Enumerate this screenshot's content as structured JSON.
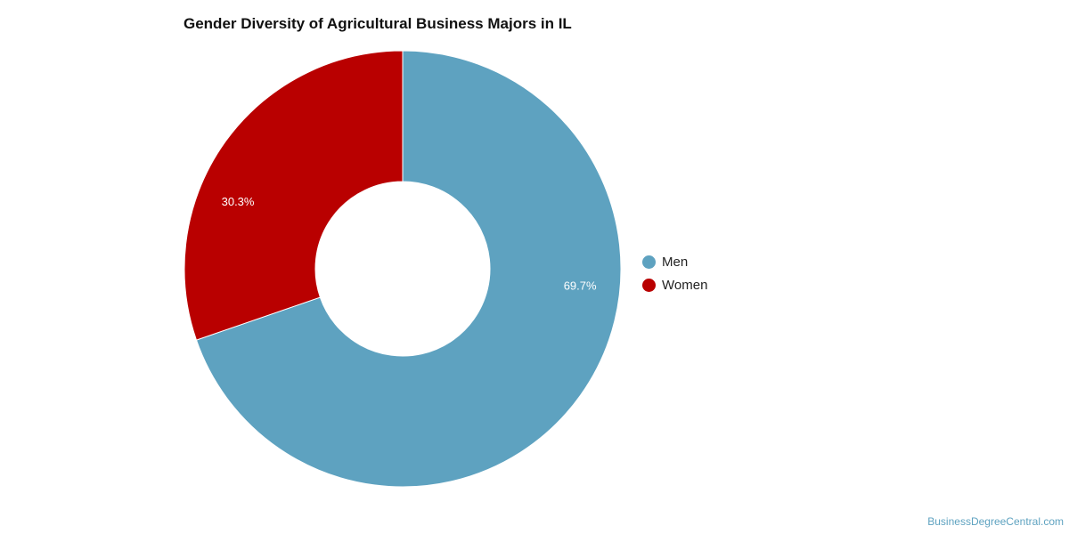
{
  "chart_data": {
    "type": "pie",
    "title": "Gender Diversity of Agricultural Business Majors in IL",
    "series": [
      {
        "name": "Men",
        "value": 69.7,
        "label": "69.7%",
        "color": "#5ea2c0"
      },
      {
        "name": "Women",
        "value": 30.3,
        "label": "30.3%",
        "color": "#b90000"
      }
    ],
    "donut": true,
    "legend_position": "right"
  },
  "credit": "BusinessDegreeCentral.com"
}
